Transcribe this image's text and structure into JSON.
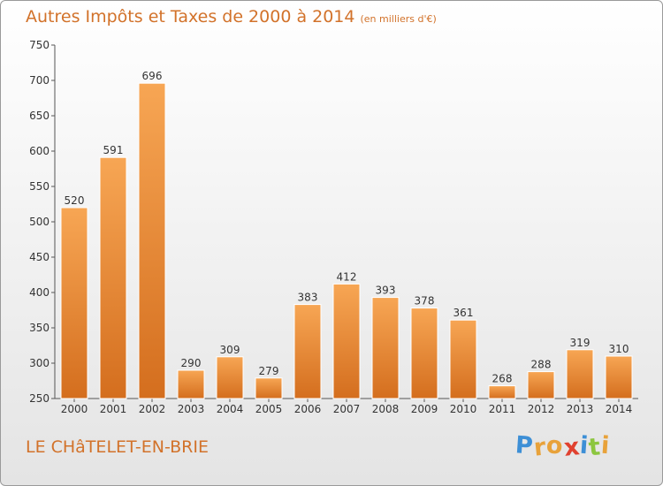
{
  "title": "Autres Impôts et Taxes de 2000 à 2014",
  "subtitle": "(en milliers d'€)",
  "commune": "LE CHâTELET-EN-BRIE",
  "logo": {
    "letters": [
      "P",
      "r",
      "o",
      "x",
      "i",
      "t",
      "i"
    ],
    "colors": [
      "#3d8fd6",
      "#e8a23a",
      "#e8a23a",
      "#e0412f",
      "#3d8fd6",
      "#8cc63f",
      "#e8a23a"
    ]
  },
  "colors": {
    "accent": "#d2722a",
    "bar_top": "#f7a654",
    "bar_bottom": "#d46e1e",
    "bar_edge": "#ffffff"
  },
  "chart_data": {
    "type": "bar",
    "categories": [
      "2000",
      "2001",
      "2002",
      "2003",
      "2004",
      "2005",
      "2006",
      "2007",
      "2008",
      "2009",
      "2010",
      "2011",
      "2012",
      "2013",
      "2014"
    ],
    "values": [
      520,
      591,
      696,
      290,
      309,
      279,
      383,
      412,
      393,
      378,
      361,
      268,
      288,
      319,
      310
    ],
    "ylim": [
      250,
      750
    ],
    "yticks": [
      250,
      300,
      350,
      400,
      450,
      500,
      550,
      600,
      650,
      700,
      750
    ],
    "grid": false,
    "xlabel": "",
    "ylabel": ""
  }
}
